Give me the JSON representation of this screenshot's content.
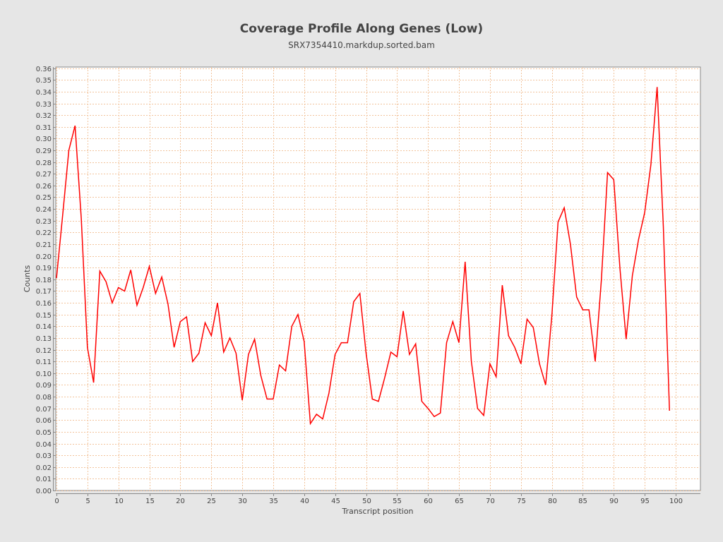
{
  "chart_data": {
    "type": "line",
    "title": "Coverage Profile Along Genes (Low)",
    "subtitle": "SRX7354410.markdup.sorted.bam",
    "xlabel": "Transcript position",
    "ylabel": "Counts",
    "xlim": [
      0,
      104
    ],
    "ylim": [
      0,
      0.361
    ],
    "x_ticks": [
      "0",
      "5",
      "10",
      "15",
      "20",
      "25",
      "30",
      "35",
      "40",
      "45",
      "50",
      "55",
      "60",
      "65",
      "70",
      "75",
      "80",
      "85",
      "90",
      "95",
      "100"
    ],
    "y_ticks": [
      "0.00",
      "0.01",
      "0.02",
      "0.03",
      "0.04",
      "0.05",
      "0.06",
      "0.07",
      "0.08",
      "0.09",
      "0.10",
      "0.11",
      "0.12",
      "0.13",
      "0.14",
      "0.15",
      "0.16",
      "0.17",
      "0.18",
      "0.19",
      "0.20",
      "0.21",
      "0.22",
      "0.23",
      "0.24",
      "0.25",
      "0.26",
      "0.27",
      "0.28",
      "0.29",
      "0.30",
      "0.31",
      "0.32",
      "0.33",
      "0.34",
      "0.35",
      "0.36"
    ],
    "grid": true,
    "series": [
      {
        "name": "SRX7354410.markdup.sorted.bam",
        "color": "#ff0000",
        "x": [
          0,
          1,
          2,
          3,
          4,
          5,
          6,
          7,
          8,
          9,
          10,
          11,
          12,
          13,
          14,
          15,
          16,
          17,
          18,
          19,
          20,
          21,
          22,
          23,
          24,
          25,
          26,
          27,
          28,
          29,
          30,
          31,
          32,
          33,
          34,
          35,
          36,
          37,
          38,
          39,
          40,
          41,
          42,
          43,
          44,
          45,
          46,
          47,
          48,
          49,
          50,
          51,
          52,
          53,
          54,
          55,
          56,
          57,
          58,
          59,
          60,
          61,
          62,
          63,
          64,
          65,
          66,
          67,
          68,
          69,
          70,
          71,
          72,
          73,
          74,
          75,
          76,
          77,
          78,
          79,
          80,
          81,
          82,
          83,
          84,
          85,
          86,
          87,
          88,
          89,
          90,
          91,
          92,
          93,
          94,
          95,
          96,
          97,
          98,
          99
        ],
        "values": [
          0.181,
          0.235,
          0.29,
          0.311,
          0.232,
          0.122,
          0.092,
          0.187,
          0.178,
          0.16,
          0.173,
          0.17,
          0.188,
          0.158,
          0.173,
          0.191,
          0.168,
          0.182,
          0.159,
          0.122,
          0.144,
          0.148,
          0.11,
          0.117,
          0.143,
          0.132,
          0.16,
          0.118,
          0.13,
          0.117,
          0.077,
          0.116,
          0.129,
          0.098,
          0.078,
          0.078,
          0.107,
          0.102,
          0.14,
          0.15,
          0.127,
          0.057,
          0.065,
          0.061,
          0.083,
          0.116,
          0.126,
          0.126,
          0.161,
          0.168,
          0.117,
          0.078,
          0.076,
          0.096,
          0.118,
          0.114,
          0.153,
          0.116,
          0.125,
          0.076,
          0.07,
          0.063,
          0.066,
          0.126,
          0.144,
          0.126,
          0.195,
          0.11,
          0.07,
          0.064,
          0.108,
          0.097,
          0.175,
          0.132,
          0.122,
          0.108,
          0.146,
          0.139,
          0.108,
          0.09,
          0.149,
          0.229,
          0.241,
          0.21,
          0.165,
          0.154,
          0.154,
          0.11,
          0.18,
          0.271,
          0.265,
          0.189,
          0.129,
          0.183,
          0.214,
          0.237,
          0.278,
          0.344,
          0.225,
          0.068
        ]
      }
    ],
    "colors": {
      "background": "#e6e6e6",
      "plot": "#ffffff",
      "grid": "#f2c39b"
    }
  }
}
